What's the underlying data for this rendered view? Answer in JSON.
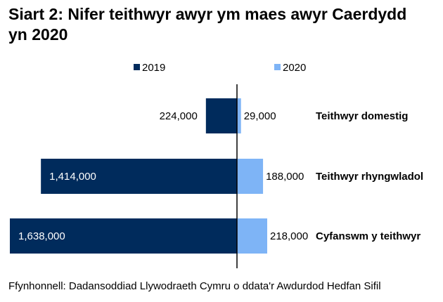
{
  "chart_data": {
    "type": "bar",
    "orientation": "horizontal-diverging",
    "title_lines": [
      "Siart 2: Nifer teithwyr awyr ym maes awyr Caerdydd",
      "yn 2020"
    ],
    "categories": [
      "Teithwyr domestig",
      "Teithwyr rhyngwladol",
      "Cyfanswm y teithwyr"
    ],
    "series": [
      {
        "name": "2019",
        "values": [
          224000,
          1414000,
          1638000
        ],
        "labels": [
          "224,000",
          "1,414,000",
          "1,638,000"
        ],
        "color": "#002b5c"
      },
      {
        "name": "2020",
        "values": [
          29000,
          188000,
          218000
        ],
        "labels": [
          "29,000",
          "188,000",
          "218,000"
        ],
        "color": "#7eb4f6"
      }
    ],
    "legend_position": "top",
    "grid": false,
    "source": "Ffynhonnell: Dadansoddiad Llywodraeth Cymru o ddata'r Awdurdod Hedfan Sifil"
  }
}
